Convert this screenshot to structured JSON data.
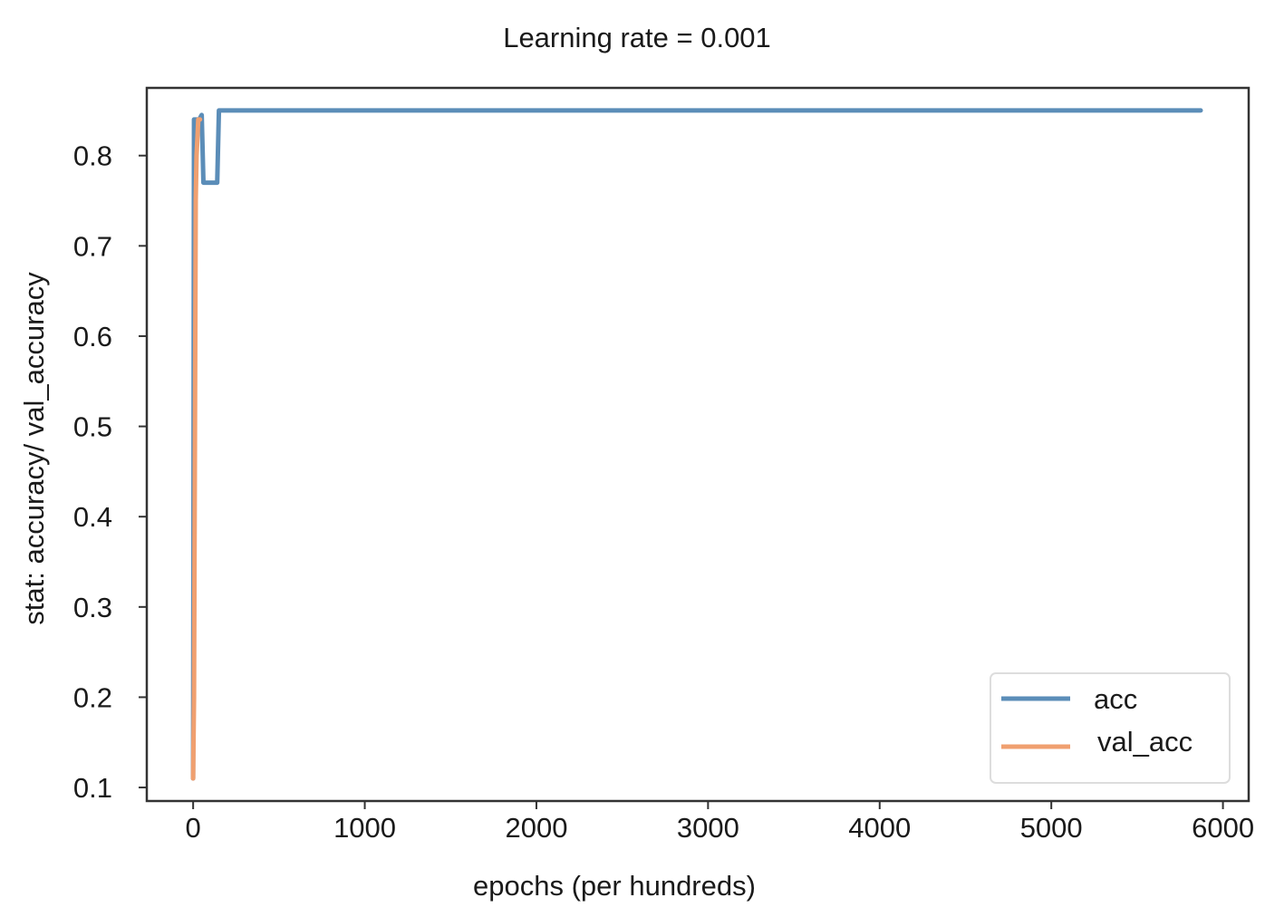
{
  "chart_data": {
    "type": "line",
    "title": "Learning rate = 0.001",
    "xlabel": "epochs (per hundreds)",
    "ylabel": "stat: accuracy/ val_accuracy",
    "xlim": [
      -270,
      6150
    ],
    "ylim": [
      0.085,
      0.875
    ],
    "x_ticks": [
      {
        "value": 0,
        "label": "0"
      },
      {
        "value": 1000,
        "label": "1000"
      },
      {
        "value": 2000,
        "label": "2000"
      },
      {
        "value": 3000,
        "label": "3000"
      },
      {
        "value": 4000,
        "label": "4000"
      },
      {
        "value": 5000,
        "label": "5000"
      },
      {
        "value": 6000,
        "label": "6000"
      }
    ],
    "y_ticks": [
      {
        "value": 0.1,
        "label": "0.1"
      },
      {
        "value": 0.2,
        "label": "0.2"
      },
      {
        "value": 0.3,
        "label": "0.3"
      },
      {
        "value": 0.4,
        "label": "0.4"
      },
      {
        "value": 0.5,
        "label": "0.5"
      },
      {
        "value": 0.6,
        "label": "0.6"
      },
      {
        "value": 0.7,
        "label": "0.7"
      },
      {
        "value": 0.8,
        "label": "0.8"
      }
    ],
    "grid": false,
    "legend_position": "bottom-right",
    "series": [
      {
        "name": "acc",
        "color": "#5b8db8",
        "x": [
          0,
          5,
          15,
          25,
          35,
          50,
          60,
          80,
          100,
          115,
          130,
          140,
          150,
          200,
          1000,
          3000,
          5000,
          5870
        ],
        "y": [
          0.11,
          0.84,
          0.84,
          0.84,
          0.84,
          0.845,
          0.77,
          0.77,
          0.77,
          0.77,
          0.77,
          0.77,
          0.85,
          0.85,
          0.85,
          0.85,
          0.85,
          0.85
        ]
      },
      {
        "name": "val_acc",
        "color": "#f0a070",
        "x": [
          0,
          5,
          10,
          15,
          20,
          25,
          30,
          35,
          40
        ],
        "y": [
          0.11,
          0.2,
          0.45,
          0.75,
          0.8,
          0.82,
          0.84,
          0.84,
          0.84
        ]
      }
    ]
  }
}
